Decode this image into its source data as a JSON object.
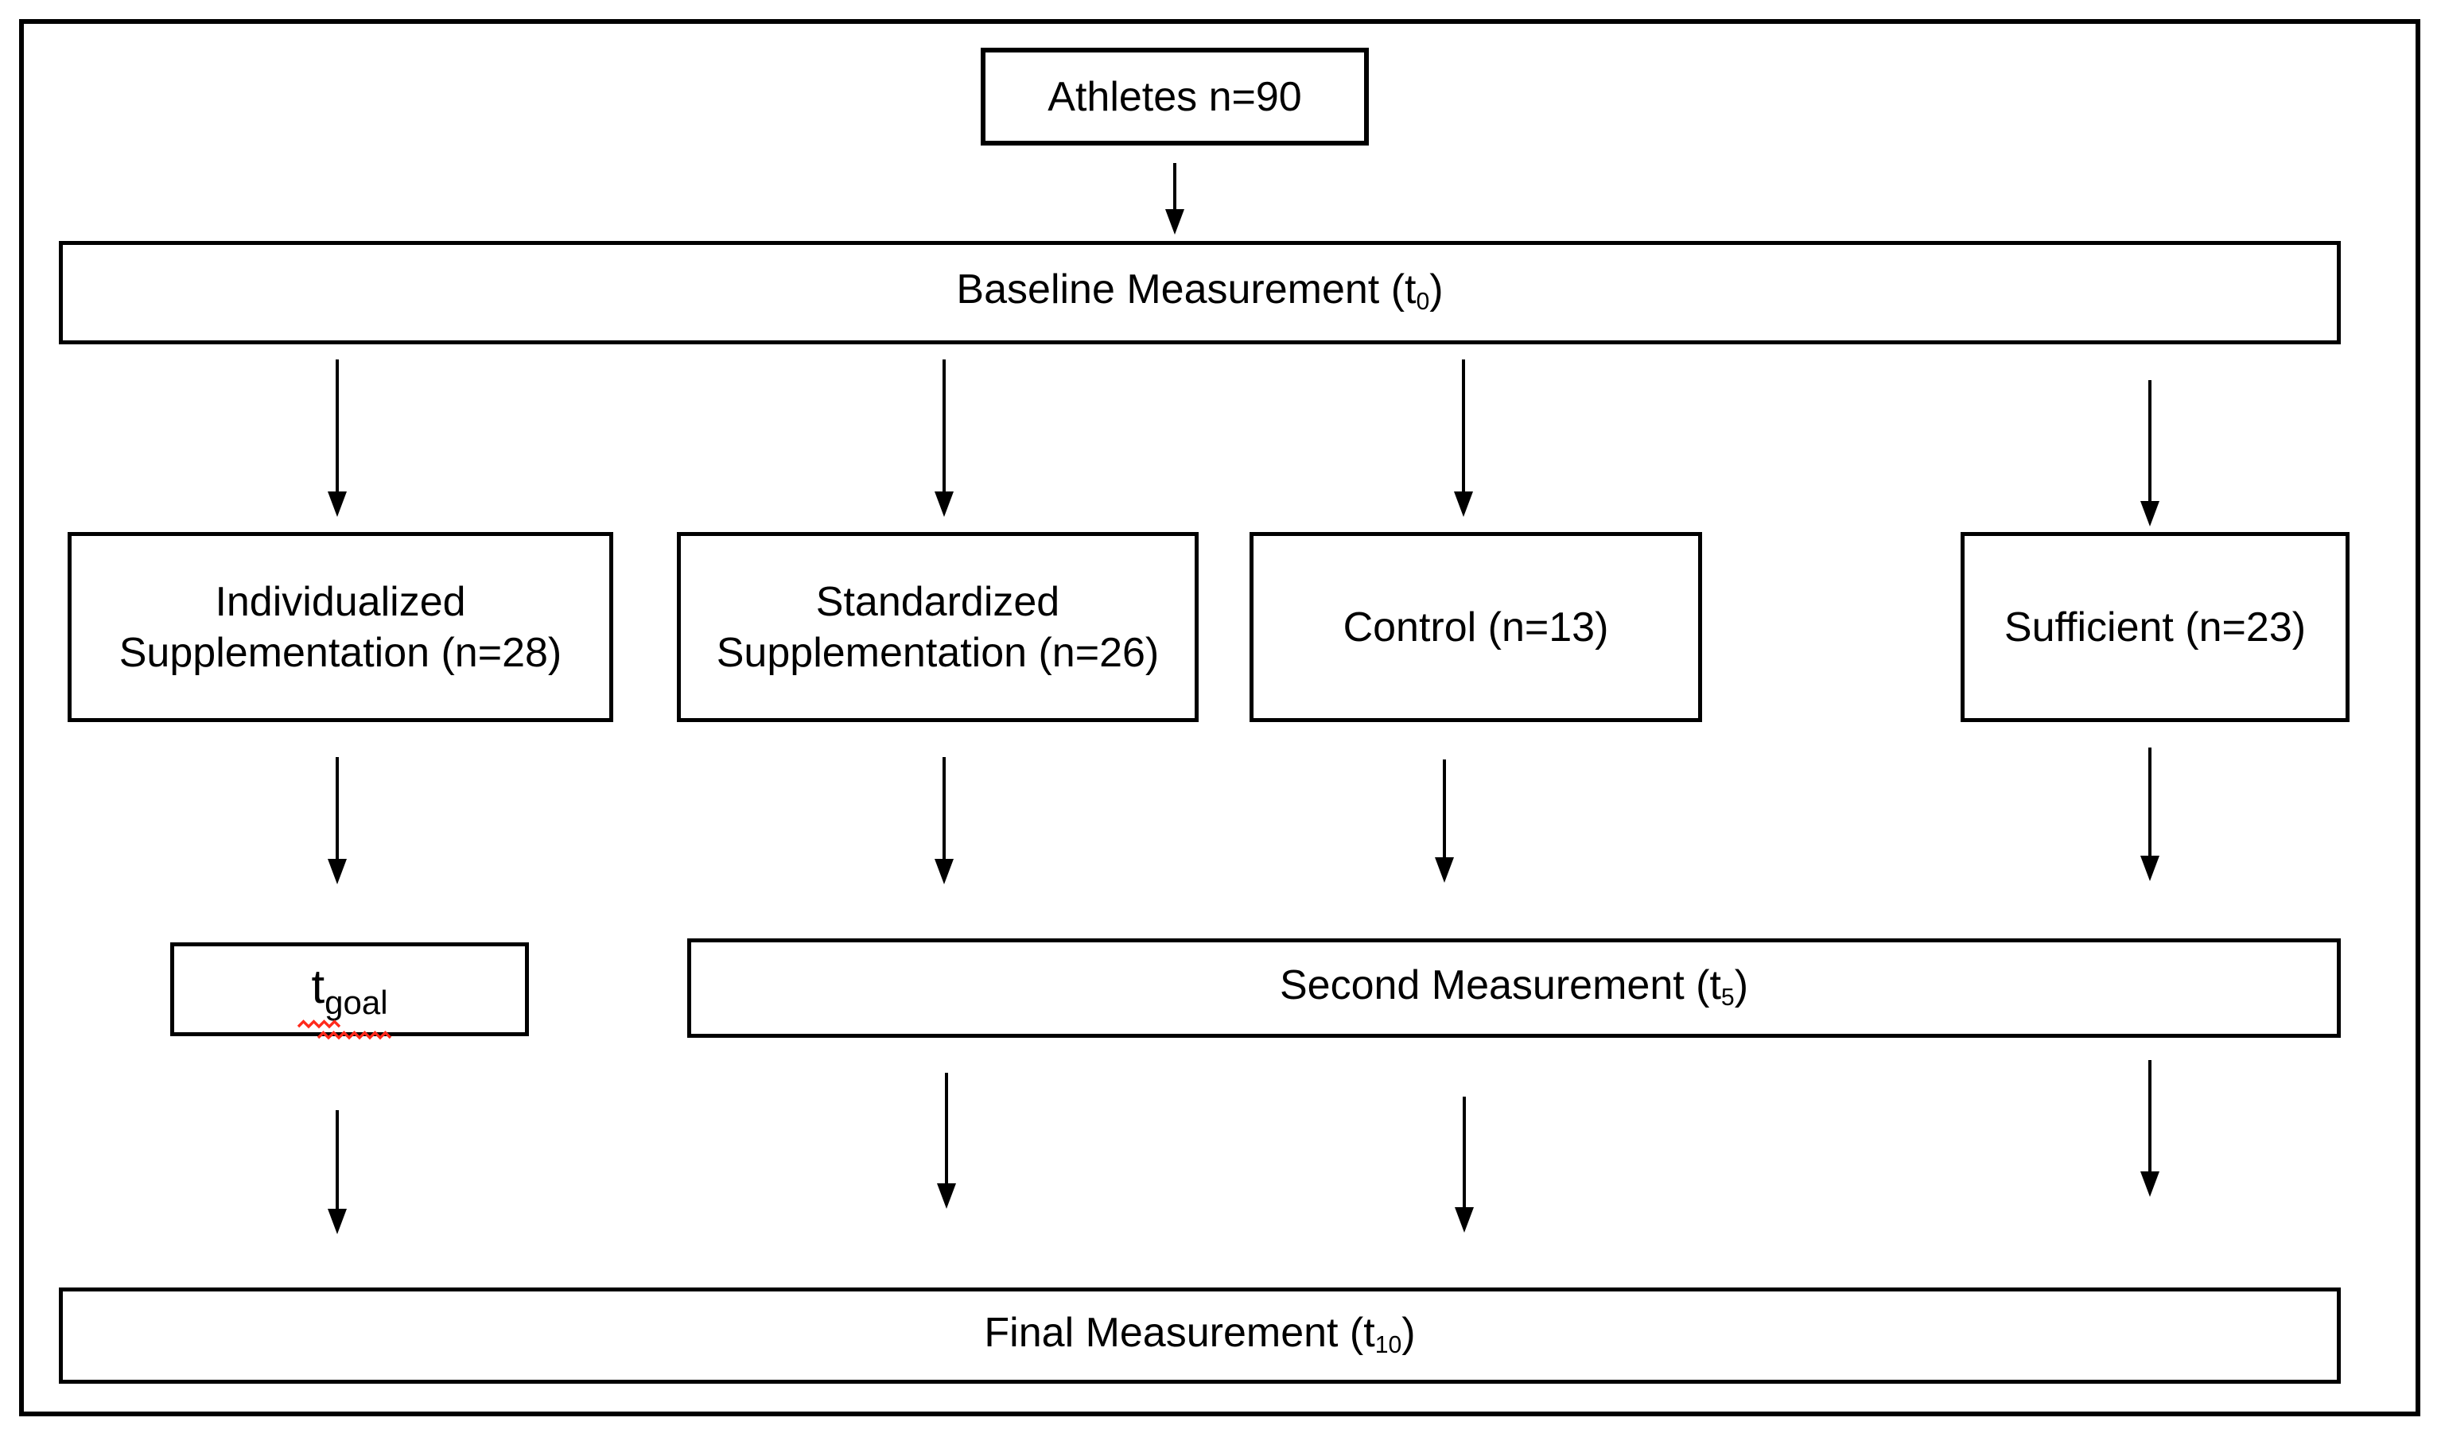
{
  "diagram": {
    "description": "Study flow diagram of athlete supplementation trial"
  },
  "colors": {
    "ink": "#000000",
    "background": "#ffffff",
    "squiggle": "#ff2a1c"
  },
  "nodes": {
    "athletes": {
      "label": "Athletes n=90"
    },
    "baseline": {
      "pre": "Baseline Measurement (t",
      "sub": "0",
      "post": ")"
    },
    "individualized": {
      "line1": "Individualized",
      "line2": "Supplementation (n=28)"
    },
    "standardized": {
      "line1": "Standardized",
      "line2": "Supplementation (n=26)"
    },
    "control": {
      "label": "Control (n=13)"
    },
    "sufficient": {
      "label": "Sufficient (n=23)"
    },
    "tgoal": {
      "pre": "t",
      "sub": "goal"
    },
    "second": {
      "pre": "Second Measurement (t",
      "sub": "5",
      "post": ")"
    },
    "final": {
      "pre": "Final Measurement (t",
      "sub": "10",
      "post": ")"
    }
  },
  "edges": [
    {
      "id": "athletes-baseline",
      "from": "athletes",
      "to": "baseline"
    },
    {
      "id": "baseline-individualized",
      "from": "baseline",
      "to": "individualized"
    },
    {
      "id": "baseline-standardized",
      "from": "baseline",
      "to": "standardized"
    },
    {
      "id": "baseline-control",
      "from": "baseline",
      "to": "control"
    },
    {
      "id": "baseline-sufficient",
      "from": "baseline",
      "to": "sufficient"
    },
    {
      "id": "individualized-tgoal",
      "from": "individualized",
      "to": "tgoal"
    },
    {
      "id": "standardized-second",
      "from": "standardized",
      "to": "second"
    },
    {
      "id": "control-second",
      "from": "control",
      "to": "second"
    },
    {
      "id": "sufficient-second",
      "from": "sufficient",
      "to": "second"
    },
    {
      "id": "tgoal-final",
      "from": "tgoal",
      "to": "final"
    },
    {
      "id": "second-final-left",
      "from": "second",
      "to": "final"
    },
    {
      "id": "second-final-mid",
      "from": "second",
      "to": "final"
    },
    {
      "id": "second-final-right",
      "from": "second",
      "to": "final"
    }
  ]
}
